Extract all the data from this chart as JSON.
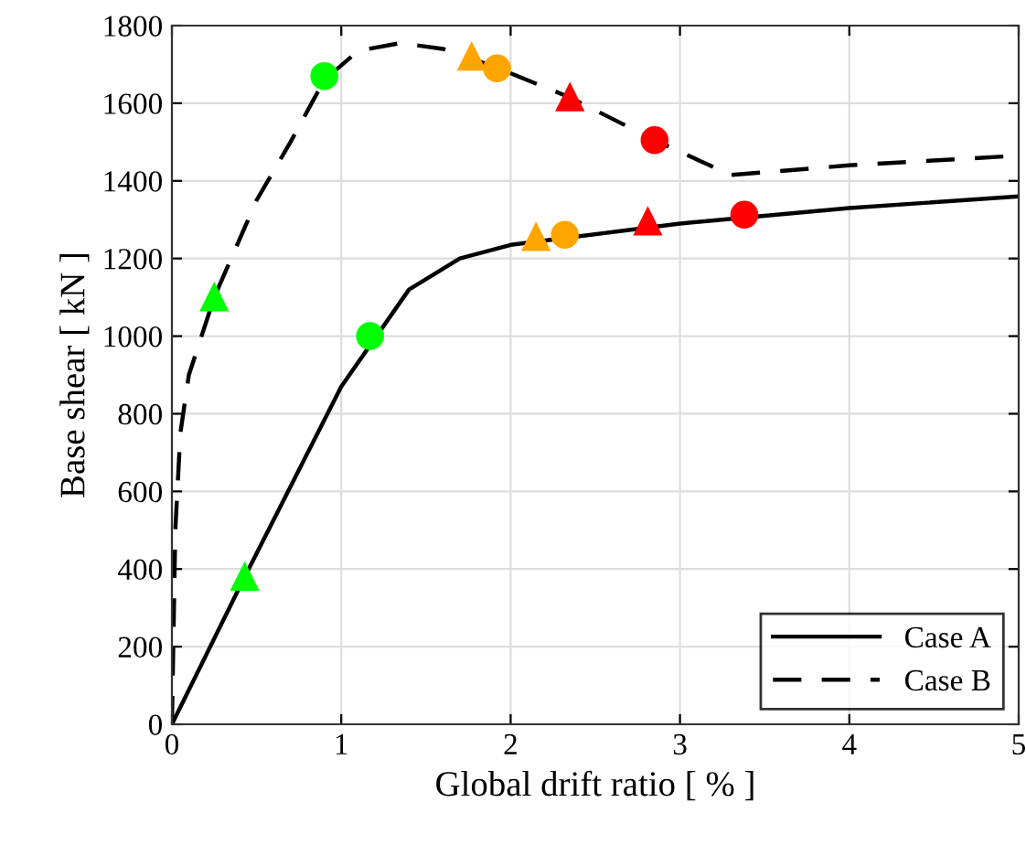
{
  "chart_data": {
    "type": "line",
    "xlabel": "Global drift ratio [ % ]",
    "ylabel": "Base shear [ kN ]",
    "xlim": [
      0,
      5
    ],
    "ylim": [
      0,
      1800
    ],
    "xticks": [
      0,
      1,
      2,
      3,
      4,
      5
    ],
    "yticks": [
      0,
      200,
      400,
      600,
      800,
      1000,
      1200,
      1400,
      1600,
      1800
    ],
    "grid": true,
    "legend": "bottom right",
    "series": [
      {
        "name": "Case A",
        "color": "#000000",
        "line_style": "solid",
        "marker": "none",
        "x": [
          0,
          0.43,
          1.0,
          1.4,
          1.7,
          2.0,
          3.0,
          4.0,
          5.0
        ],
        "values": [
          0,
          380,
          870,
          1120,
          1200,
          1235,
          1290,
          1330,
          1360
        ]
      },
      {
        "name": "Case B",
        "color": "#000000",
        "line_style": "dashed",
        "marker": "none",
        "x": [
          0,
          0.02,
          0.05,
          0.1,
          0.25,
          0.5,
          0.7,
          0.9,
          1.1,
          1.35,
          1.6,
          1.9,
          2.35,
          2.85,
          3.3,
          4.0,
          5.0
        ],
        "values": [
          0,
          500,
          750,
          900,
          1100,
          1350,
          1500,
          1660,
          1735,
          1755,
          1740,
          1695,
          1615,
          1505,
          1415,
          1440,
          1465
        ]
      },
      {
        "type": "scatter",
        "color": "#00ff00",
        "marker": "triangle",
        "x": [
          0.43,
          0.25
        ],
        "values": [
          380,
          1100
        ]
      },
      {
        "type": "scatter",
        "color": "#00ff00",
        "marker": "circle",
        "x": [
          1.17,
          0.9
        ],
        "values": [
          1000,
          1670
        ]
      },
      {
        "type": "scatter",
        "color": "#ffa500",
        "marker": "triangle",
        "x": [
          2.15,
          1.77
        ],
        "values": [
          1255,
          1720
        ]
      },
      {
        "type": "scatter",
        "color": "#ffa500",
        "marker": "circle",
        "x": [
          2.32,
          1.92
        ],
        "values": [
          1261,
          1690
        ]
      },
      {
        "type": "scatter",
        "color": "#ff0000",
        "marker": "triangle",
        "x": [
          2.81,
          2.35
        ],
        "values": [
          1295,
          1615
        ]
      },
      {
        "type": "scatter",
        "color": "#ff0000",
        "marker": "circle",
        "x": [
          3.38,
          2.85
        ],
        "values": [
          1313,
          1505
        ]
      }
    ]
  }
}
